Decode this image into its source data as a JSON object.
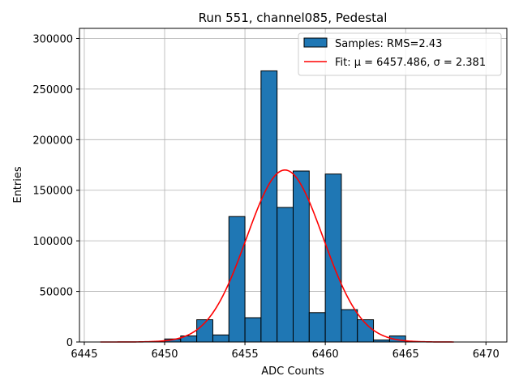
{
  "chart_data": {
    "type": "bar",
    "title": "Run 551, channel085, Pedestal",
    "xlabel": "ADC Counts",
    "ylabel": "Entries",
    "xlim": [
      6444.7,
      6471.3
    ],
    "ylim": [
      0,
      310000
    ],
    "xticks": [
      6445,
      6450,
      6455,
      6460,
      6465,
      6470
    ],
    "yticks": [
      0,
      50000,
      100000,
      150000,
      200000,
      250000,
      300000
    ],
    "grid": true,
    "legend_position": "top-right",
    "bar_color": "#1f77b4",
    "fit_color": "#ff0000",
    "bin_width": 1,
    "bins": [
      {
        "x": 6450,
        "value": 3000
      },
      {
        "x": 6451,
        "value": 6000
      },
      {
        "x": 6452,
        "value": 22000
      },
      {
        "x": 6453,
        "value": 7000
      },
      {
        "x": 6454,
        "value": 124000
      },
      {
        "x": 6455,
        "value": 24000
      },
      {
        "x": 6456,
        "value": 268000
      },
      {
        "x": 6457,
        "value": 133000
      },
      {
        "x": 6458,
        "value": 169000
      },
      {
        "x": 6459,
        "value": 29000
      },
      {
        "x": 6460,
        "value": 166000
      },
      {
        "x": 6461,
        "value": 32000
      },
      {
        "x": 6462,
        "value": 22000
      },
      {
        "x": 6463,
        "value": 2000
      },
      {
        "x": 6464,
        "value": 6000
      }
    ],
    "series": [
      {
        "name": "Samples: RMS=2.43",
        "kind": "histogram"
      },
      {
        "name": "Fit: μ = 6457.486, σ = 2.381",
        "kind": "line",
        "mu": 6457.486,
        "sigma": 2.381,
        "amplitude": 170000,
        "x_range": [
          6446,
          6468
        ]
      }
    ]
  }
}
